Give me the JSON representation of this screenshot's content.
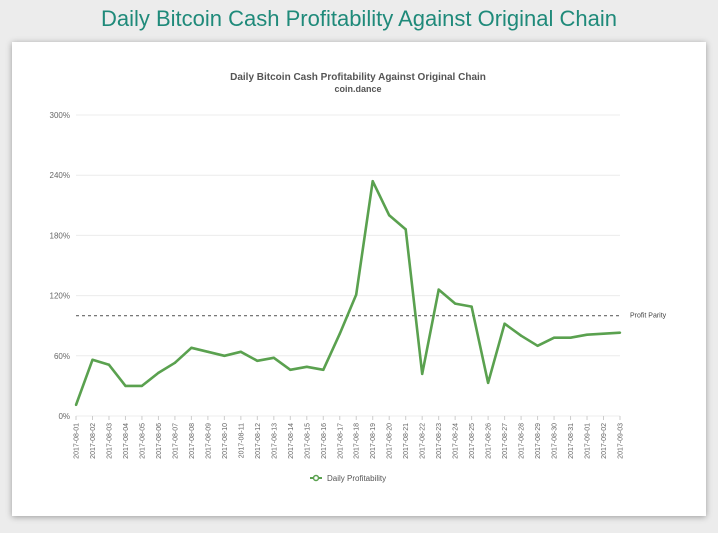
{
  "page": {
    "heading": "Daily Bitcoin Cash Profitability Against Original Chain"
  },
  "chart_data": {
    "type": "line",
    "title": "Daily Bitcoin Cash Profitability Against Original Chain",
    "subtitle": "coin.dance",
    "xlabel": "",
    "ylabel": "",
    "ylim": [
      0,
      300
    ],
    "yticks": [
      "0%",
      "60%",
      "120%",
      "180%",
      "240%",
      "300%"
    ],
    "ytick_values": [
      0,
      60,
      120,
      180,
      240,
      300
    ],
    "grid": true,
    "legend_position": "bottom-center",
    "reference_line": {
      "label": "Profit Parity",
      "value": 100,
      "style": "dashed"
    },
    "x": [
      "2017-08-01",
      "2017-08-02",
      "2017-08-03",
      "2017-08-04",
      "2017-08-05",
      "2017-08-06",
      "2017-08-07",
      "2017-08-08",
      "2017-08-09",
      "2017-08-10",
      "2017-08-11",
      "2017-08-12",
      "2017-08-13",
      "2017-08-14",
      "2017-08-15",
      "2017-08-16",
      "2017-08-17",
      "2017-08-18",
      "2017-08-19",
      "2017-08-20",
      "2017-08-21",
      "2017-08-22",
      "2017-08-23",
      "2017-08-24",
      "2017-08-25",
      "2017-08-26",
      "2017-08-27",
      "2017-08-28",
      "2017-08-29",
      "2017-08-30",
      "2017-08-31",
      "2017-09-01",
      "2017-09-02",
      "2017-09-03"
    ],
    "series": [
      {
        "name": "Daily Profitability",
        "color": "#5aa14f",
        "values": [
          11,
          56,
          51,
          30,
          30,
          43,
          53,
          68,
          64,
          60,
          64,
          55,
          58,
          46,
          49,
          46,
          82,
          121,
          234,
          200,
          186,
          42,
          126,
          112,
          109,
          33,
          92,
          80,
          70,
          78,
          78,
          81,
          82,
          83
        ]
      }
    ]
  }
}
